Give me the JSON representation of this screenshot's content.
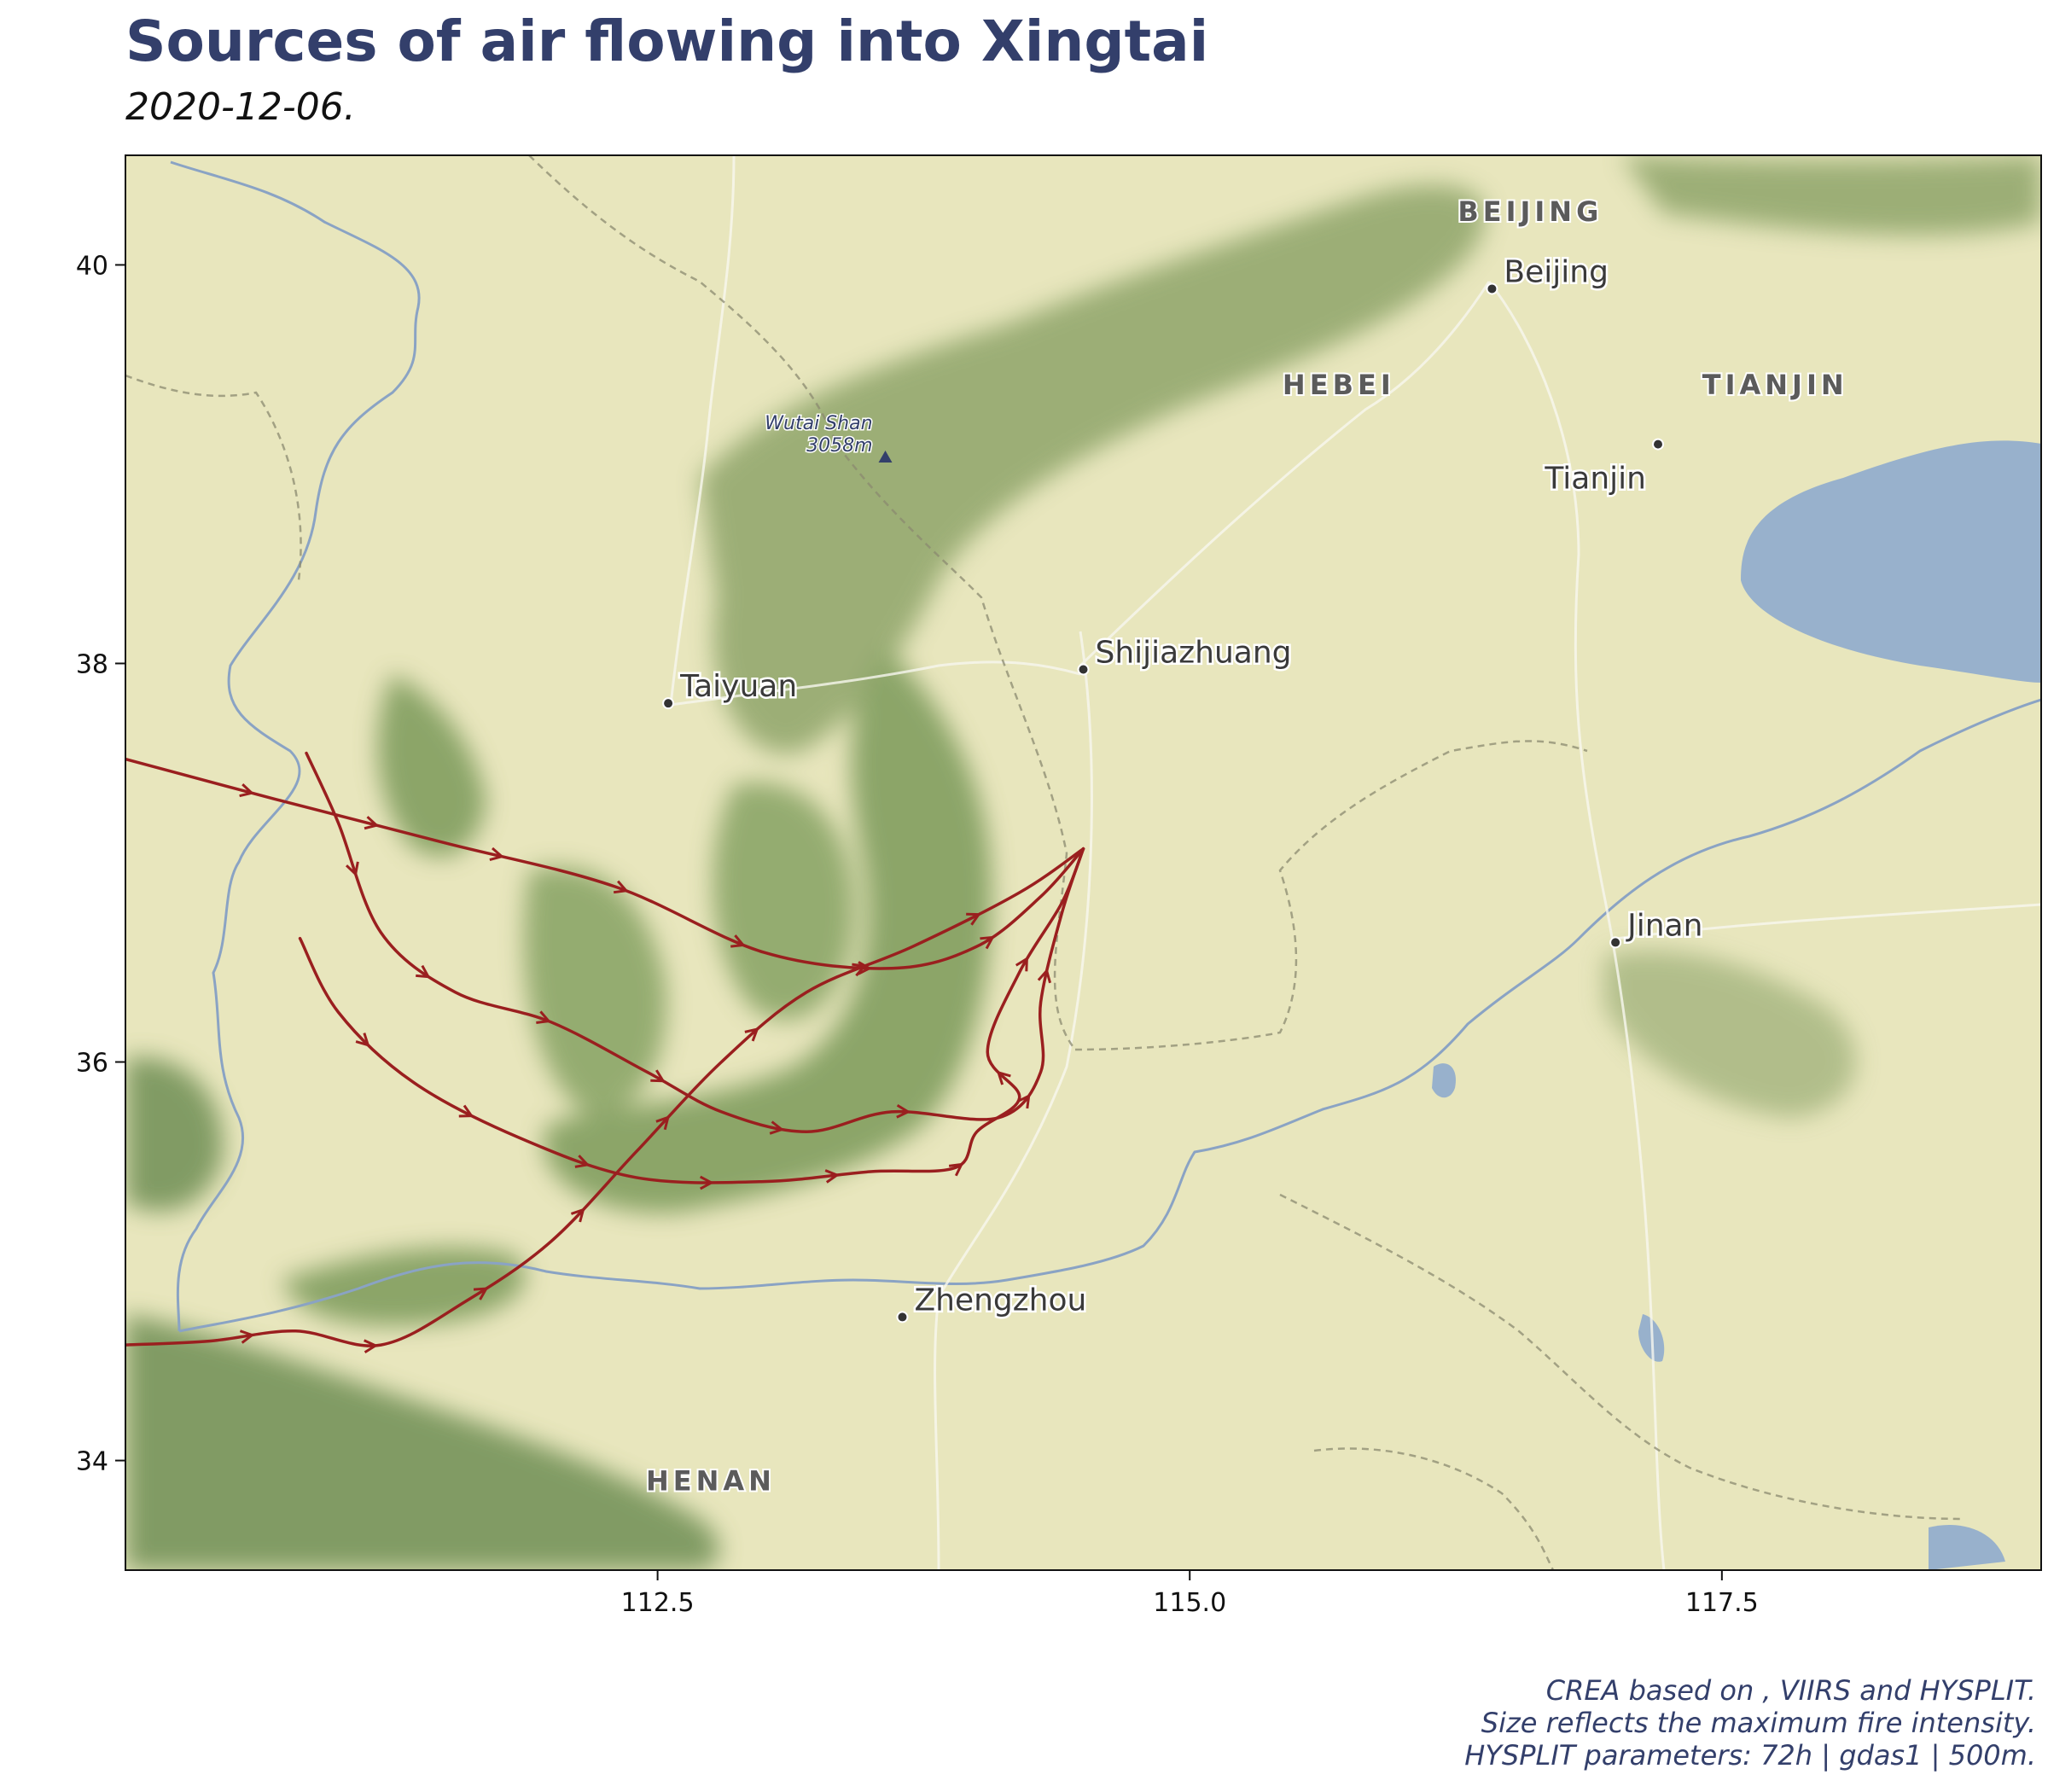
{
  "title": "Sources of air flowing into Xingtai",
  "subtitle": "2020-12-06.",
  "caption": [
    "CREA based on , VIIRS and HYSPLIT.",
    "Size reflects the maximum fire intensity.",
    "HYSPLIT parameters: 72h | gdas1 | 500m."
  ],
  "colors": {
    "title": "#333f6b",
    "trajectory": "#9a1f1f",
    "land": "#e8e6bd",
    "mountain": "#7d9a5e",
    "water": "#98b1cc"
  },
  "axes": {
    "x_range": [
      110.0,
      119.0
    ],
    "y_range": [
      33.45,
      40.55
    ],
    "x_ticks": [
      112.5,
      115.0,
      117.5
    ],
    "x_tick_labels": [
      "112.5",
      "115.0",
      "117.5"
    ],
    "y_ticks": [
      34,
      36,
      38,
      40
    ],
    "y_tick_labels": [
      "34",
      "36",
      "38",
      "40"
    ]
  },
  "places": {
    "cities": [
      {
        "name": "Beijing",
        "lon": 116.42,
        "lat": 39.88
      },
      {
        "name": "Tianjin",
        "lon": 117.2,
        "lat": 39.1
      },
      {
        "name": "Shijiazhuang",
        "lon": 114.5,
        "lat": 37.97
      },
      {
        "name": "Taiyuan",
        "lon": 112.55,
        "lat": 37.8
      },
      {
        "name": "Jinan",
        "lon": 117.0,
        "lat": 36.6
      },
      {
        "name": "Zhengzhou",
        "lon": 113.65,
        "lat": 34.72
      }
    ],
    "regions": [
      {
        "name": "BEIJING",
        "lon": 116.6,
        "lat": 40.22
      },
      {
        "name": "HEBEI",
        "lon": 115.7,
        "lat": 39.35
      },
      {
        "name": "TIANJIN",
        "lon": 117.75,
        "lat": 39.35
      },
      {
        "name": "HENAN",
        "lon": 112.75,
        "lat": 33.85
      }
    ],
    "peak": {
      "name": "Wutai Shan",
      "elevation": "3058m",
      "lon": 113.57,
      "lat": 39.03
    }
  },
  "chart_data": {
    "type": "line",
    "xlabel": "",
    "ylabel": "",
    "xlim": [
      110.0,
      119.0
    ],
    "ylim": [
      33.45,
      40.55
    ],
    "receptor": {
      "lon": 114.5,
      "lat": 37.07
    },
    "series": [
      {
        "points": [
          [
            110.0,
            37.52
          ],
          [
            110.7,
            37.32
          ],
          [
            111.5,
            37.1
          ],
          [
            112.3,
            36.88
          ],
          [
            113.0,
            36.55
          ],
          [
            113.6,
            36.47
          ],
          [
            114.0,
            36.58
          ],
          [
            114.3,
            36.83
          ],
          [
            114.5,
            37.07
          ]
        ]
      },
      {
        "points": [
          [
            110.85,
            37.55
          ],
          [
            111.0,
            37.2
          ],
          [
            111.2,
            36.65
          ],
          [
            111.55,
            36.35
          ],
          [
            112.0,
            36.2
          ],
          [
            112.45,
            35.95
          ],
          [
            112.8,
            35.75
          ],
          [
            113.2,
            35.65
          ],
          [
            113.6,
            35.75
          ],
          [
            114.1,
            35.72
          ],
          [
            114.3,
            35.95
          ],
          [
            114.3,
            36.3
          ],
          [
            114.4,
            36.75
          ],
          [
            114.5,
            37.07
          ]
        ]
      },
      {
        "points": [
          [
            110.82,
            36.62
          ],
          [
            111.0,
            36.25
          ],
          [
            111.35,
            35.9
          ],
          [
            111.85,
            35.62
          ],
          [
            112.4,
            35.42
          ],
          [
            113.0,
            35.4
          ],
          [
            113.5,
            35.45
          ],
          [
            113.9,
            35.47
          ],
          [
            114.0,
            35.65
          ],
          [
            114.2,
            35.82
          ],
          [
            114.05,
            36.05
          ],
          [
            114.2,
            36.45
          ],
          [
            114.4,
            36.8
          ],
          [
            114.5,
            37.07
          ]
        ]
      },
      {
        "points": [
          [
            110.0,
            34.58
          ],
          [
            110.4,
            34.6
          ],
          [
            110.8,
            34.65
          ],
          [
            111.2,
            34.58
          ],
          [
            111.6,
            34.8
          ],
          [
            112.0,
            35.1
          ],
          [
            112.4,
            35.55
          ],
          [
            112.8,
            36.0
          ],
          [
            113.2,
            36.35
          ],
          [
            113.7,
            36.58
          ],
          [
            114.2,
            36.85
          ],
          [
            114.5,
            37.07
          ]
        ]
      }
    ]
  }
}
